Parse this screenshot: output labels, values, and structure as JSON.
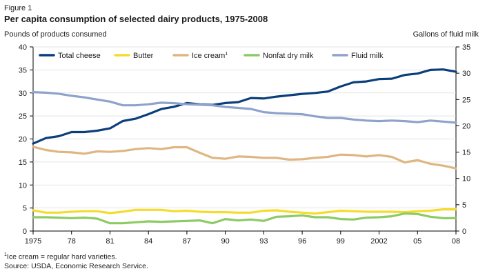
{
  "figure_label": "Figure 1",
  "chart_data": {
    "type": "line",
    "title": "Per capita consumption of selected dairy products, 1975-2008",
    "ylabel_left": "Pounds of products consumed",
    "ylabel_right": "Gallons of fluid milk",
    "ylim_left": [
      0,
      40
    ],
    "ylim_right": [
      0,
      35
    ],
    "yticks_left": [
      0,
      5,
      10,
      15,
      20,
      25,
      30,
      35,
      40
    ],
    "yticks_right": [
      0,
      5,
      10,
      15,
      20,
      25,
      30,
      35
    ],
    "x": [
      1975,
      1976,
      1977,
      1978,
      1979,
      1980,
      1981,
      1982,
      1983,
      1984,
      1985,
      1986,
      1987,
      1988,
      1989,
      1990,
      1991,
      1992,
      1993,
      1994,
      1995,
      1996,
      1997,
      1998,
      1999,
      2000,
      2001,
      2002,
      2003,
      2004,
      2005,
      2006,
      2007,
      2008
    ],
    "xticks": [
      {
        "value": 1975,
        "label": "1975"
      },
      {
        "value": 1978,
        "label": "78"
      },
      {
        "value": 1981,
        "label": "81"
      },
      {
        "value": 1984,
        "label": "84"
      },
      {
        "value": 1987,
        "label": "87"
      },
      {
        "value": 1990,
        "label": "90"
      },
      {
        "value": 1993,
        "label": "93"
      },
      {
        "value": 1996,
        "label": "96"
      },
      {
        "value": 1999,
        "label": "99"
      },
      {
        "value": 2002,
        "label": "2002"
      },
      {
        "value": 2005,
        "label": "05"
      },
      {
        "value": 2008,
        "label": "08"
      }
    ],
    "legend_position": "top",
    "series": [
      {
        "name": "Total cheese",
        "superscript": "",
        "color": "#0b3e7a",
        "axis": "left",
        "values": [
          19.0,
          20.2,
          20.6,
          21.5,
          21.5,
          21.8,
          22.3,
          23.9,
          24.4,
          25.4,
          26.5,
          27.0,
          27.8,
          27.5,
          27.4,
          27.8,
          28.0,
          28.9,
          28.8,
          29.2,
          29.5,
          29.8,
          30.0,
          30.3,
          31.4,
          32.3,
          32.5,
          33.0,
          33.1,
          33.9,
          34.2,
          35.0,
          35.1,
          34.6
        ]
      },
      {
        "name": "Butter",
        "superscript": "",
        "color": "#f4dc2c",
        "axis": "left",
        "values": [
          4.5,
          4.0,
          4.0,
          4.2,
          4.3,
          4.3,
          3.9,
          4.2,
          4.6,
          4.6,
          4.6,
          4.3,
          4.4,
          4.2,
          4.1,
          4.1,
          4.0,
          4.0,
          4.4,
          4.5,
          4.2,
          4.0,
          3.8,
          4.1,
          4.4,
          4.3,
          4.2,
          4.2,
          4.2,
          4.1,
          4.3,
          4.4,
          4.7,
          4.7
        ]
      },
      {
        "name": "Ice cream",
        "superscript": "1",
        "color": "#dfb681",
        "axis": "left",
        "values": [
          18.3,
          17.6,
          17.2,
          17.1,
          16.8,
          17.3,
          17.2,
          17.4,
          17.8,
          18.0,
          17.8,
          18.2,
          18.2,
          17.0,
          15.9,
          15.7,
          16.2,
          16.1,
          15.9,
          15.9,
          15.5,
          15.6,
          15.9,
          16.1,
          16.6,
          16.5,
          16.2,
          16.5,
          16.1,
          14.9,
          15.4,
          14.6,
          14.2,
          13.6
        ]
      },
      {
        "name": "Nonfat dry milk",
        "superscript": "",
        "color": "#8ccb63",
        "axis": "left",
        "values": [
          3.0,
          3.0,
          2.9,
          2.8,
          2.9,
          2.7,
          1.7,
          1.7,
          1.9,
          2.1,
          2.0,
          2.1,
          2.2,
          2.3,
          1.7,
          2.6,
          2.3,
          2.5,
          2.2,
          3.1,
          3.2,
          3.4,
          3.0,
          3.0,
          2.6,
          2.5,
          2.9,
          3.0,
          3.2,
          3.8,
          3.7,
          3.1,
          2.8,
          2.8
        ]
      },
      {
        "name": "Fluid milk",
        "superscript": "",
        "color": "#8fa2cc",
        "axis": "right",
        "values": [
          26.4,
          26.3,
          26.1,
          25.7,
          25.4,
          25.0,
          24.6,
          23.9,
          23.9,
          24.1,
          24.4,
          24.3,
          24.1,
          24.0,
          23.9,
          23.6,
          23.4,
          23.2,
          22.6,
          22.4,
          22.3,
          22.2,
          21.8,
          21.5,
          21.5,
          21.2,
          21.0,
          20.9,
          21.0,
          20.9,
          20.7,
          21.0,
          20.8,
          20.6
        ]
      }
    ]
  },
  "footnote": {
    "marker": "1",
    "text": "Ice cream = regular hard varieties."
  },
  "source": "Source: USDA, Economic Research Service."
}
